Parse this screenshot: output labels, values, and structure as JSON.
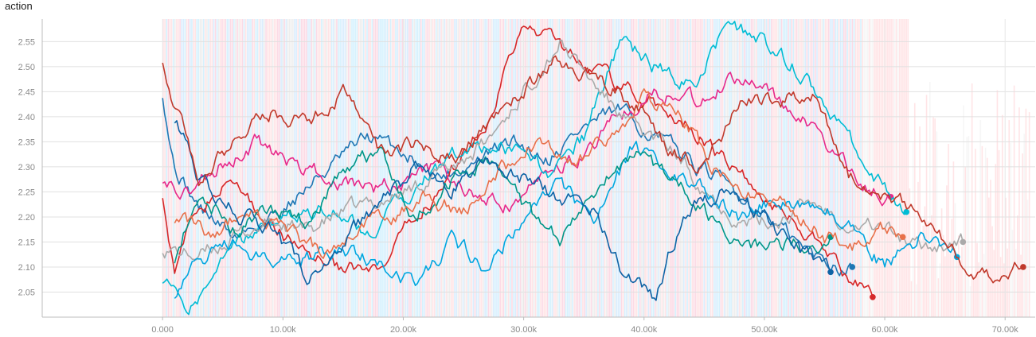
{
  "chart_data": {
    "type": "line",
    "title": "action",
    "xlabel": "",
    "ylabel": "",
    "xlim": [
      -10000,
      72500
    ],
    "ylim": [
      2.0,
      2.595
    ],
    "grid": true,
    "x_ticks": [
      {
        "value": 0,
        "label": "0.000"
      },
      {
        "value": 10000,
        "label": "10.00k"
      },
      {
        "value": 20000,
        "label": "20.00k"
      },
      {
        "value": 30000,
        "label": "30.00k"
      },
      {
        "value": 40000,
        "label": "40.00k"
      },
      {
        "value": 50000,
        "label": "50.00k"
      },
      {
        "value": 60000,
        "label": "60.00k"
      },
      {
        "value": 70000,
        "label": "70.00k"
      }
    ],
    "y_ticks": [
      {
        "value": 2.05,
        "label": "2.05"
      },
      {
        "value": 2.1,
        "label": "2.10"
      },
      {
        "value": 2.15,
        "label": "2.15"
      },
      {
        "value": 2.2,
        "label": "2.20"
      },
      {
        "value": 2.25,
        "label": "2.25"
      },
      {
        "value": 2.3,
        "label": "2.30"
      },
      {
        "value": 2.35,
        "label": "2.35"
      },
      {
        "value": 2.4,
        "label": "2.40"
      },
      {
        "value": 2.45,
        "label": "2.45"
      },
      {
        "value": 2.5,
        "label": "2.50"
      },
      {
        "value": 2.55,
        "label": "2.55"
      }
    ],
    "series": [
      {
        "color": "#1f77b4",
        "end_marker": true,
        "x": [
          0,
          1000,
          3000,
          6000,
          9000,
          11000,
          14000,
          17000,
          20000,
          23000,
          26000,
          29000,
          32000,
          35000,
          38000,
          41000,
          44000,
          47000,
          50000,
          53000,
          55000,
          57300
        ],
        "y": [
          2.45,
          2.3,
          2.22,
          2.16,
          2.2,
          2.24,
          2.3,
          2.36,
          2.33,
          2.28,
          2.31,
          2.35,
          2.32,
          2.38,
          2.41,
          2.36,
          2.31,
          2.26,
          2.21,
          2.14,
          2.11,
          2.1
        ]
      },
      {
        "color": "#d62728",
        "end_marker": true,
        "x": [
          0,
          1000,
          3000,
          6000,
          9000,
          12000,
          15000,
          18000,
          21000,
          24000,
          27000,
          30000,
          33000,
          36000,
          39000,
          42000,
          45000,
          48000,
          51000,
          54000,
          57000,
          59000
        ],
        "y": [
          2.25,
          2.1,
          2.22,
          2.27,
          2.18,
          2.13,
          2.1,
          2.08,
          2.2,
          2.29,
          2.4,
          2.58,
          2.55,
          2.49,
          2.45,
          2.41,
          2.36,
          2.28,
          2.22,
          2.16,
          2.08,
          2.04
        ]
      },
      {
        "color": "#e7298a",
        "end_marker": true,
        "x": [
          0,
          2000,
          5000,
          8000,
          11000,
          14000,
          17000,
          20000,
          23000,
          26000,
          29000,
          32000,
          35000,
          38000,
          41000,
          44000,
          47000,
          50000,
          53000,
          56000,
          58000,
          60500
        ],
        "y": [
          2.28,
          2.25,
          2.31,
          2.35,
          2.3,
          2.28,
          2.25,
          2.27,
          2.3,
          2.24,
          2.22,
          2.28,
          2.33,
          2.4,
          2.45,
          2.43,
          2.47,
          2.45,
          2.4,
          2.33,
          2.27,
          2.24
        ]
      },
      {
        "color": "#00bcd4",
        "end_marker": true,
        "x": [
          0,
          2000,
          5000,
          8000,
          11000,
          14000,
          17000,
          20000,
          23000,
          26000,
          29000,
          32000,
          35000,
          38000,
          41000,
          44000,
          47000,
          50000,
          53000,
          56000,
          58000,
          61800
        ],
        "y": [
          2.08,
          2.0,
          2.13,
          2.17,
          2.2,
          2.22,
          2.17,
          2.24,
          2.3,
          2.35,
          2.33,
          2.29,
          2.36,
          2.55,
          2.5,
          2.46,
          2.58,
          2.55,
          2.49,
          2.4,
          2.32,
          2.21
        ]
      },
      {
        "color": "#aaaaaa",
        "end_marker": true,
        "x": [
          0,
          3000,
          6000,
          9000,
          12000,
          15000,
          18000,
          21000,
          24000,
          27000,
          30000,
          33000,
          36000,
          39000,
          42000,
          45000,
          48000,
          51000,
          54000,
          57000,
          60000,
          62500,
          66500
        ],
        "y": [
          2.14,
          2.12,
          2.16,
          2.19,
          2.17,
          2.21,
          2.23,
          2.26,
          2.3,
          2.35,
          2.45,
          2.55,
          2.46,
          2.38,
          2.34,
          2.26,
          2.19,
          2.19,
          2.23,
          2.19,
          2.18,
          2.14,
          2.15
        ]
      },
      {
        "color": "#00a6e0",
        "end_marker": true,
        "x": [
          1000,
          3000,
          6000,
          9000,
          12000,
          15000,
          18000,
          21000,
          24000,
          27000,
          30000,
          33000,
          36000,
          39000,
          42000,
          45000,
          48000,
          51000,
          54000,
          57000,
          60000,
          63000,
          66000
        ],
        "y": [
          2.05,
          2.12,
          2.15,
          2.1,
          2.12,
          2.14,
          2.11,
          2.06,
          2.15,
          2.1,
          2.2,
          2.27,
          2.18,
          2.34,
          2.3,
          2.26,
          2.2,
          2.24,
          2.22,
          2.19,
          2.1,
          2.16,
          2.12
        ]
      },
      {
        "color": "#009688",
        "end_marker": true,
        "x": [
          1000,
          3000,
          6000,
          9000,
          12000,
          15000,
          18000,
          21000,
          24000,
          27000,
          30000,
          33000,
          36000,
          39000,
          42000,
          45000,
          48000,
          51000,
          54000,
          55500
        ],
        "y": [
          2.12,
          2.26,
          2.17,
          2.22,
          2.19,
          2.3,
          2.33,
          2.2,
          2.27,
          2.31,
          2.22,
          2.15,
          2.25,
          2.33,
          2.28,
          2.21,
          2.14,
          2.15,
          2.14,
          2.16
        ]
      },
      {
        "color": "#e8704a",
        "end_marker": true,
        "x": [
          1000,
          4000,
          7000,
          10000,
          13000,
          16000,
          19000,
          22000,
          25000,
          28000,
          31000,
          34000,
          37000,
          40000,
          43000,
          46000,
          49000,
          52000,
          55000,
          58000,
          60000,
          61500
        ],
        "y": [
          2.2,
          2.17,
          2.22,
          2.17,
          2.13,
          2.17,
          2.2,
          2.24,
          2.21,
          2.29,
          2.35,
          2.3,
          2.36,
          2.44,
          2.4,
          2.3,
          2.25,
          2.22,
          2.16,
          2.14,
          2.18,
          2.16
        ]
      },
      {
        "color": "#0d63a5",
        "end_marker": true,
        "x": [
          1000,
          3000,
          6000,
          9000,
          12000,
          15000,
          18000,
          21000,
          24000,
          27000,
          30000,
          33000,
          36000,
          38000,
          40000,
          41000,
          42000,
          44000,
          47000,
          50000,
          53000,
          55500
        ],
        "y": [
          2.4,
          2.28,
          2.21,
          2.18,
          2.08,
          2.15,
          2.22,
          2.3,
          2.26,
          2.32,
          2.28,
          2.24,
          2.21,
          2.1,
          2.05,
          2.03,
          2.12,
          2.22,
          2.25,
          2.2,
          2.13,
          2.09
        ]
      },
      {
        "color": "#c0392b",
        "end_marker": true,
        "x": [
          0,
          3000,
          6000,
          9000,
          12000,
          15000,
          18000,
          21000,
          24000,
          27000,
          30000,
          33000,
          36000,
          39000,
          42000,
          45000,
          48000,
          51000,
          54000,
          57000,
          60000,
          64000,
          67000,
          69000,
          71500
        ],
        "y": [
          2.52,
          2.26,
          2.36,
          2.41,
          2.38,
          2.45,
          2.33,
          2.34,
          2.31,
          2.38,
          2.45,
          2.52,
          2.48,
          2.43,
          2.34,
          2.3,
          2.43,
          2.43,
          2.45,
          2.28,
          2.25,
          2.18,
          2.1,
          2.09,
          2.1
        ]
      }
    ]
  }
}
